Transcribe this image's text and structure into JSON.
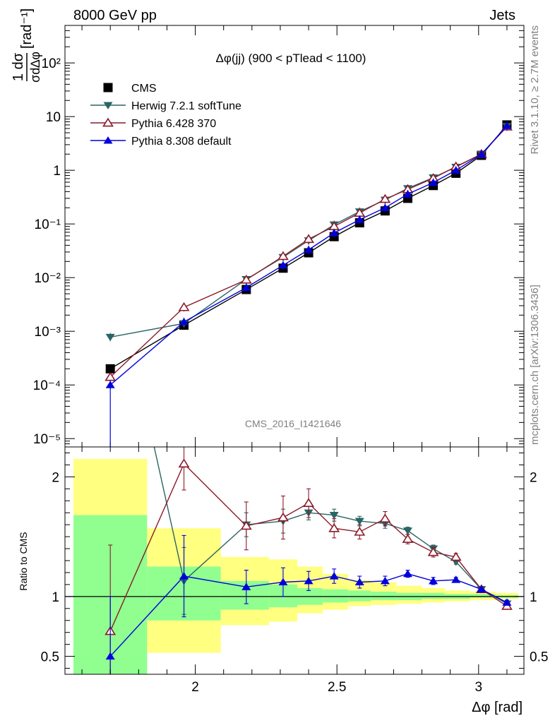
{
  "header": {
    "energy_label": "8000 GeV pp",
    "process_label": "Jets",
    "analysis_id": "CMS_2016_I1421646",
    "rivet_label": "Rivet 3.1.10, ≥ 2.7M events",
    "mcplots_label": "mcplots.cern.ch [arXiv:1306.3436]"
  },
  "chart_data": [
    {
      "type": "line",
      "panel": "main",
      "title": "Δφ(jj) (900 < pTlead <  1100)",
      "xlabel": "Δφ [rad]",
      "ylabel": "1/σ dσ/dΔφ [rad⁻¹]",
      "y_scale": "log",
      "xlim": [
        1.54,
        3.16
      ],
      "ylim": [
        7e-06,
        500
      ],
      "y_ticks": [
        {
          "label": "10⁻⁵",
          "value": 1e-05
        },
        {
          "label": "10⁻⁴",
          "value": 0.0001
        },
        {
          "label": "10⁻³",
          "value": 0.001
        },
        {
          "label": "10⁻²",
          "value": 0.01
        },
        {
          "label": "10⁻¹",
          "value": 0.1
        },
        {
          "label": "1",
          "value": 1
        },
        {
          "label": "10",
          "value": 10
        },
        {
          "label": "10²",
          "value": 100
        }
      ],
      "legend_position": "top-left",
      "x": [
        1.7,
        1.96,
        2.18,
        2.31,
        2.4,
        2.49,
        2.58,
        2.67,
        2.75,
        2.84,
        2.92,
        3.01,
        3.1
      ],
      "series": [
        {
          "name": "CMS",
          "color": "#000000",
          "marker": "square",
          "values": [
            0.0002,
            0.0013,
            0.006,
            0.015,
            0.029,
            0.058,
            0.105,
            0.175,
            0.3,
            0.52,
            0.88,
            1.9,
            7.0
          ]
        },
        {
          "name": "Herwig 7.2.1 softTune",
          "color": "#2a6464",
          "marker": "triangle-down",
          "values": [
            0.00078,
            0.0014,
            0.0093,
            0.024,
            0.049,
            0.097,
            0.17,
            0.28,
            0.46,
            0.73,
            1.15,
            2.0,
            6.6
          ]
        },
        {
          "name": "Pythia 6.428 370",
          "color": "#8b1a2a",
          "marker": "triangle-up-open",
          "values": [
            0.00014,
            0.0028,
            0.0091,
            0.025,
            0.052,
            0.09,
            0.16,
            0.29,
            0.44,
            0.71,
            1.17,
            2.0,
            6.5
          ]
        },
        {
          "name": "Pythia 8.308 default",
          "color": "#0000dd",
          "marker": "triangle-up",
          "values": [
            0.0001,
            0.0015,
            0.0065,
            0.017,
            0.033,
            0.068,
            0.12,
            0.2,
            0.36,
            0.59,
            1.0,
            1.98,
            6.7
          ]
        }
      ]
    },
    {
      "type": "line",
      "panel": "ratio",
      "ylabel": "Ratio to CMS",
      "xlabel": "Δφ [rad]",
      "xlim": [
        1.54,
        3.16
      ],
      "ylim": [
        0.35,
        2.25
      ],
      "y_ticks": [
        {
          "label": "0.5",
          "value": 0.5
        },
        {
          "label": "1",
          "value": 1
        },
        {
          "label": "2",
          "value": 2
        }
      ],
      "x_ticks": [
        {
          "label": "2",
          "value": 2.0
        },
        {
          "label": "2.5",
          "value": 2.5
        },
        {
          "label": "3",
          "value": 3.0
        }
      ],
      "reference_line": 1,
      "bands": [
        {
          "x0": 1.57,
          "x1": 1.83,
          "stat_lo": 0.35,
          "stat_hi": 1.68,
          "tot_lo": 0.35,
          "tot_hi": 2.15
        },
        {
          "x0": 1.83,
          "x1": 2.09,
          "stat_lo": 0.8,
          "stat_hi": 1.25,
          "tot_lo": 0.53,
          "tot_hi": 1.57
        },
        {
          "x0": 2.09,
          "x1": 2.26,
          "stat_lo": 0.89,
          "stat_hi": 1.13,
          "tot_lo": 0.76,
          "tot_hi": 1.33
        },
        {
          "x0": 2.26,
          "x1": 2.36,
          "stat_lo": 0.91,
          "stat_hi": 1.1,
          "tot_lo": 0.79,
          "tot_hi": 1.31
        },
        {
          "x0": 2.36,
          "x1": 2.45,
          "stat_lo": 0.93,
          "stat_hi": 1.07,
          "tot_lo": 0.86,
          "tot_hi": 1.25
        },
        {
          "x0": 2.45,
          "x1": 2.54,
          "stat_lo": 0.95,
          "stat_hi": 1.06,
          "tot_lo": 0.89,
          "tot_hi": 1.19
        },
        {
          "x0": 2.54,
          "x1": 2.62,
          "stat_lo": 0.96,
          "stat_hi": 1.05,
          "tot_lo": 0.92,
          "tot_hi": 1.14
        },
        {
          "x0": 2.62,
          "x1": 2.71,
          "stat_lo": 0.97,
          "stat_hi": 1.04,
          "tot_lo": 0.93,
          "tot_hi": 1.12
        },
        {
          "x0": 2.71,
          "x1": 2.8,
          "stat_lo": 0.97,
          "stat_hi": 1.03,
          "tot_lo": 0.94,
          "tot_hi": 1.09
        },
        {
          "x0": 2.8,
          "x1": 2.88,
          "stat_lo": 0.98,
          "stat_hi": 1.03,
          "tot_lo": 0.95,
          "tot_hi": 1.07
        },
        {
          "x0": 2.88,
          "x1": 2.97,
          "stat_lo": 0.98,
          "stat_hi": 1.02,
          "tot_lo": 0.96,
          "tot_hi": 1.05
        },
        {
          "x0": 2.97,
          "x1": 3.06,
          "stat_lo": 0.99,
          "stat_hi": 1.02,
          "tot_lo": 0.97,
          "tot_hi": 1.04
        },
        {
          "x0": 3.06,
          "x1": 3.14,
          "stat_lo": 0.99,
          "stat_hi": 1.01,
          "tot_lo": 0.98,
          "tot_hi": 1.03
        }
      ],
      "x": [
        1.7,
        1.96,
        2.18,
        2.31,
        2.4,
        2.49,
        2.58,
        2.67,
        2.75,
        2.84,
        2.92,
        3.01,
        3.1
      ],
      "series": [
        {
          "name": "Herwig 7.2.1 softTune",
          "color": "#2a6464",
          "marker": "triangle-down",
          "values": [
            3.9,
            1.13,
            1.6,
            1.63,
            1.7,
            1.68,
            1.63,
            1.61,
            1.55,
            1.4,
            1.29,
            1.06,
            0.94
          ],
          "err_lo": [
            0,
            0.28,
            0.1,
            0.1,
            0.06,
            0.05,
            0.04,
            0.04,
            0.03,
            0.03,
            0.02,
            0.02,
            0.02
          ],
          "err_hi": [
            0,
            0.28,
            0.1,
            0.1,
            0.06,
            0.05,
            0.04,
            0.04,
            0.03,
            0.03,
            0.02,
            0.02,
            0.02
          ]
        },
        {
          "name": "Pythia 6.428 370",
          "color": "#8b1a2a",
          "marker": "triangle-up-open",
          "values": [
            0.71,
            2.11,
            1.59,
            1.66,
            1.78,
            1.57,
            1.54,
            1.65,
            1.48,
            1.37,
            1.33,
            1.06,
            0.92
          ],
          "err_lo": [
            0.71,
            0.22,
            0.2,
            0.18,
            0.12,
            0.08,
            0.06,
            0.06,
            0.04,
            0.04,
            0.03,
            0.02,
            0.02
          ],
          "err_hi": [
            0.72,
            0.22,
            0.2,
            0.18,
            0.12,
            0.08,
            0.06,
            0.06,
            0.04,
            0.04,
            0.03,
            0.02,
            0.02
          ]
        },
        {
          "name": "Pythia 8.308 default",
          "color": "#0000dd",
          "marker": "triangle-up",
          "values": [
            0.5,
            1.17,
            1.08,
            1.12,
            1.13,
            1.17,
            1.12,
            1.13,
            1.19,
            1.13,
            1.14,
            1.06,
            0.95
          ],
          "err_lo": [
            0.5,
            0.34,
            0.14,
            0.12,
            0.08,
            0.06,
            0.05,
            0.04,
            0.03,
            0.03,
            0.02,
            0.02,
            0.02
          ],
          "err_hi": [
            0.5,
            0.34,
            0.14,
            0.12,
            0.08,
            0.06,
            0.05,
            0.04,
            0.03,
            0.03,
            0.02,
            0.02,
            0.02
          ]
        }
      ]
    }
  ]
}
